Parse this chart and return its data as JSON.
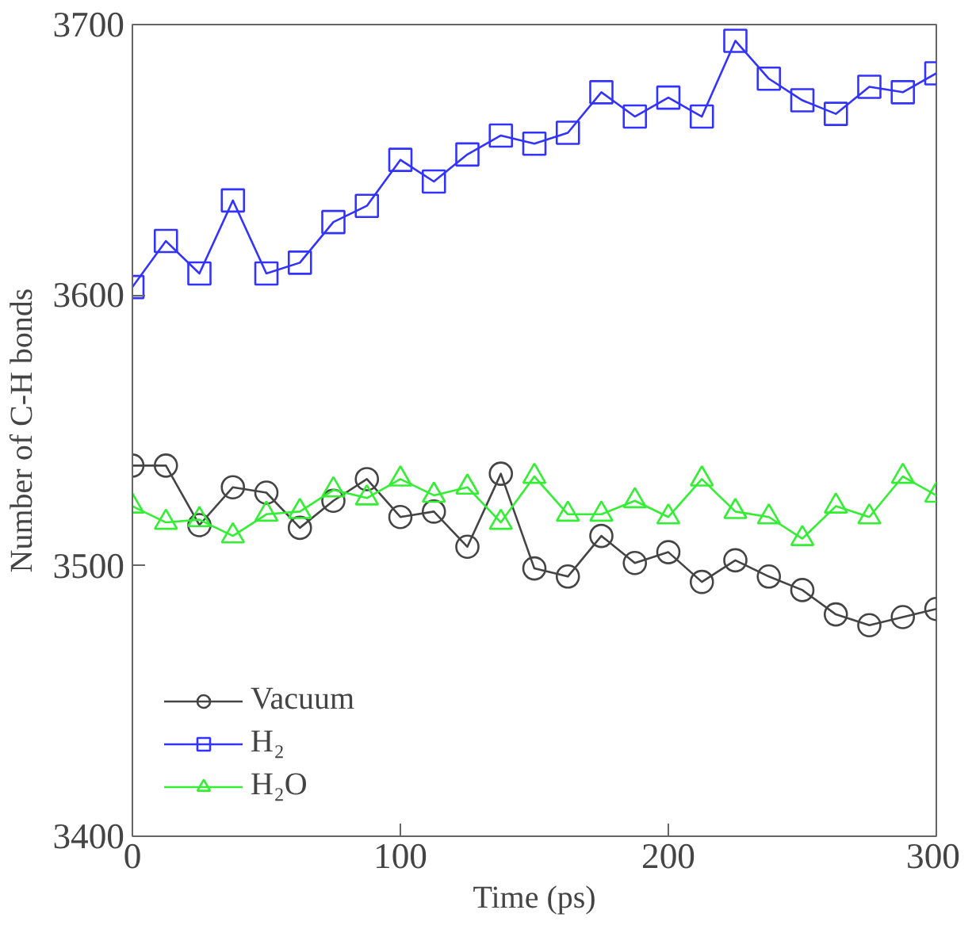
{
  "chart_data": {
    "type": "line",
    "xlabel": "Time (ps)",
    "ylabel": "Number of C-H bonds",
    "x": [
      0,
      12.5,
      25,
      37.5,
      50,
      62.5,
      75,
      87.5,
      100,
      112.5,
      125,
      137.5,
      150,
      162.5,
      175,
      187.5,
      200,
      212.5,
      225,
      237.5,
      250,
      262.5,
      275,
      287.5,
      300
    ],
    "series": [
      {
        "name": "Vacuum",
        "color": "#444444",
        "marker": "circle",
        "values": [
          3537,
          3537,
          3515,
          3529,
          3527,
          3514,
          3524,
          3532,
          3518,
          3520,
          3507,
          3534,
          3499,
          3496,
          3511,
          3501,
          3505,
          3494,
          3502,
          3496,
          3491,
          3482,
          3478,
          3481,
          3484
        ]
      },
      {
        "name": "H₂",
        "color": "#3333ff",
        "marker": "square",
        "values": [
          3603,
          3620,
          3608,
          3635,
          3608,
          3612,
          3627,
          3633,
          3650,
          3642,
          3652,
          3659,
          3656,
          3660,
          3675,
          3666,
          3673,
          3666,
          3694,
          3680,
          3672,
          3667,
          3677,
          3675,
          3682
        ]
      },
      {
        "name": "H₂O",
        "color": "#33ee33",
        "marker": "triangle",
        "values": [
          3522,
          3516,
          3517,
          3511,
          3519,
          3520,
          3528,
          3525,
          3532,
          3526,
          3529,
          3516,
          3533,
          3519,
          3519,
          3524,
          3518,
          3532,
          3520,
          3518,
          3510,
          3522,
          3518,
          3533,
          3526
        ]
      }
    ],
    "xlim": [
      0,
      300
    ],
    "ylim": [
      3400,
      3700
    ],
    "xticks": [
      0,
      100,
      200,
      300
    ],
    "yticks": [
      3400,
      3500,
      3600,
      3700
    ],
    "grid": false,
    "legend": "bottom left",
    "line_style": "solid"
  }
}
